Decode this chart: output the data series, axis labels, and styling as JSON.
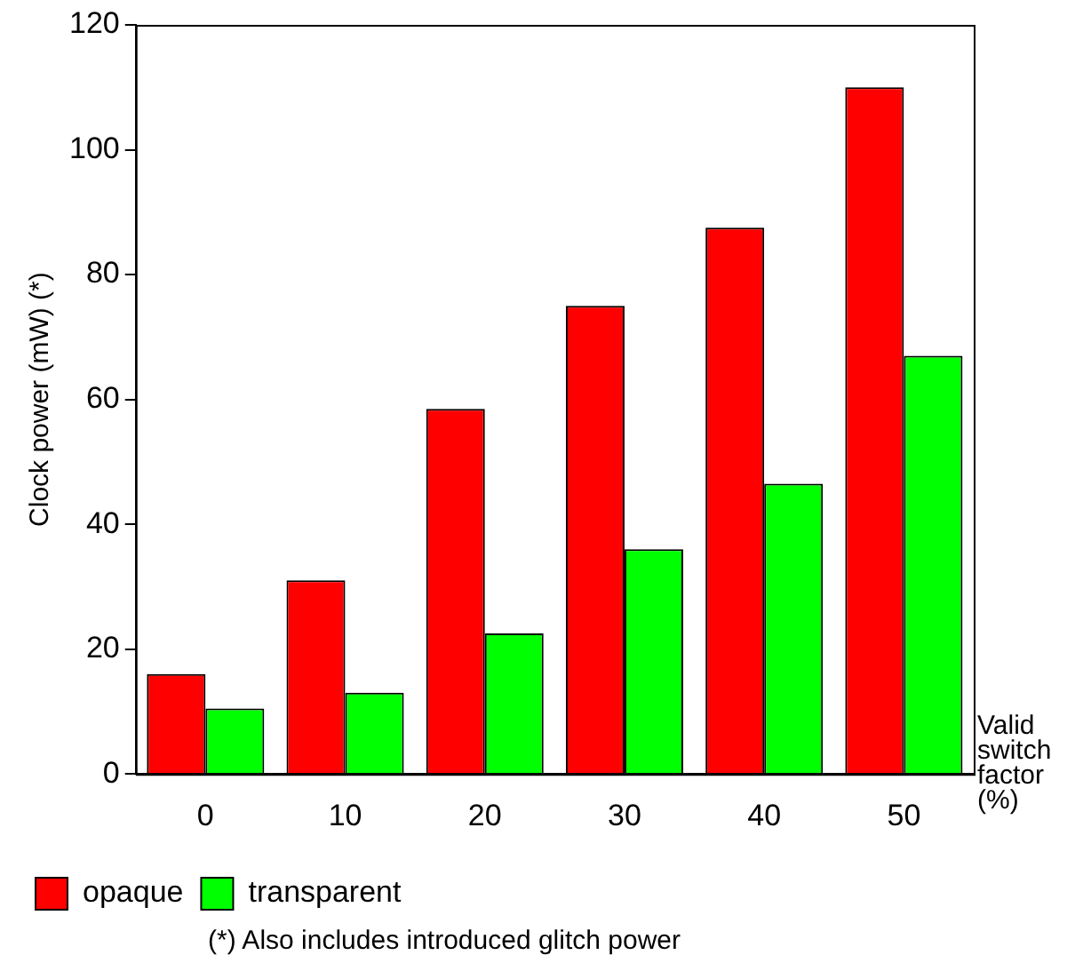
{
  "chart_data": {
    "type": "bar",
    "xlabel": "Valid switch factor (%)",
    "ylabel": "Clock power (mW) (*)",
    "categories": [
      "0",
      "10",
      "20",
      "30",
      "40",
      "50"
    ],
    "series": [
      {
        "name": "opaque",
        "color": "#ff0000",
        "values": [
          16,
          31,
          58.5,
          75,
          87.5,
          110
        ]
      },
      {
        "name": "transparent",
        "color": "#00ff00",
        "values": [
          10.5,
          13,
          22.5,
          36,
          46.5,
          67
        ]
      }
    ],
    "ylim": [
      0,
      120
    ],
    "yticks": [
      0,
      20,
      40,
      60,
      80,
      100,
      120
    ],
    "grid": false,
    "legend": "bottom",
    "annotations": [
      "(*) Also includes introduced glitch power"
    ]
  }
}
